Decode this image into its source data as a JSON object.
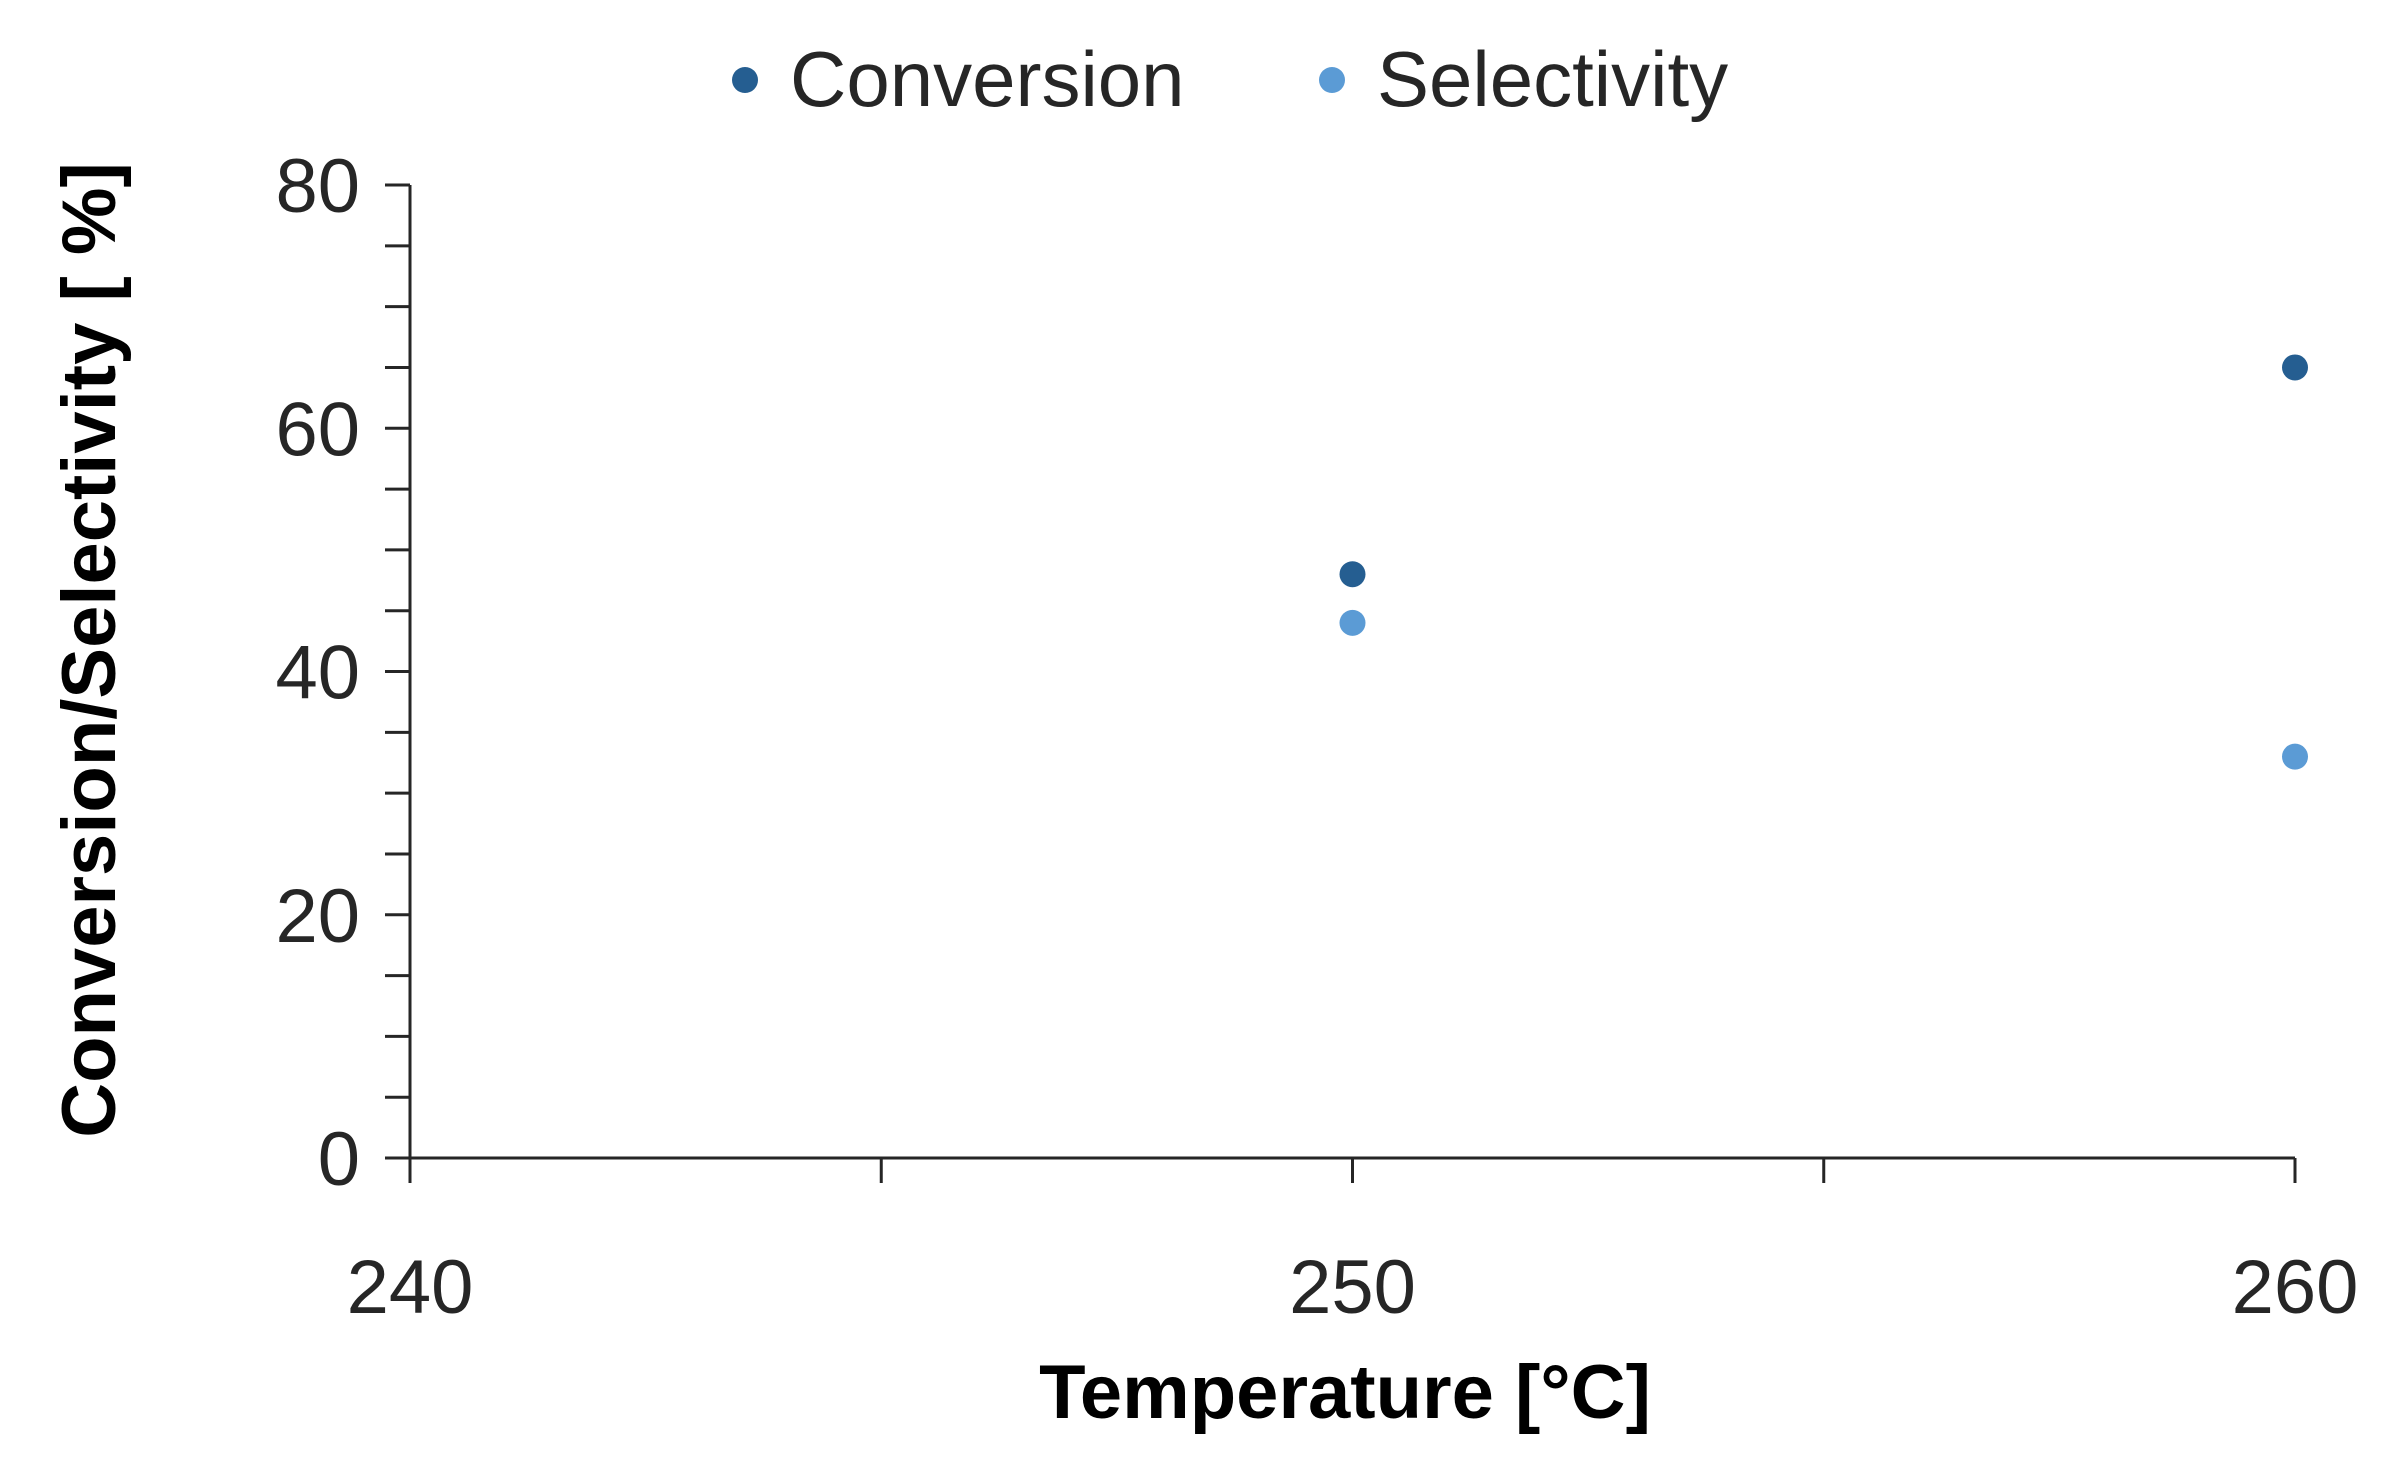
{
  "chart_data": {
    "type": "scatter",
    "xlabel": "Temperature [°C]",
    "ylabel": "Conversion/Selectivity [ %]",
    "xlim": [
      240,
      260
    ],
    "ylim": [
      0,
      80
    ],
    "x_ticks": [
      240,
      250,
      260
    ],
    "x_minor_step": 5,
    "y_ticks": [
      0,
      20,
      40,
      60,
      80
    ],
    "y_minor_step": 5,
    "grid": false,
    "legend_position": "top-center",
    "series": [
      {
        "name": "Conversion",
        "color": "#255E91",
        "points": [
          {
            "x": 250,
            "y": 48
          },
          {
            "x": 260,
            "y": 65
          }
        ]
      },
      {
        "name": "Selectivity",
        "color": "#5B9BD5",
        "points": [
          {
            "x": 250,
            "y": 44
          },
          {
            "x": 260,
            "y": 33
          }
        ]
      }
    ]
  }
}
